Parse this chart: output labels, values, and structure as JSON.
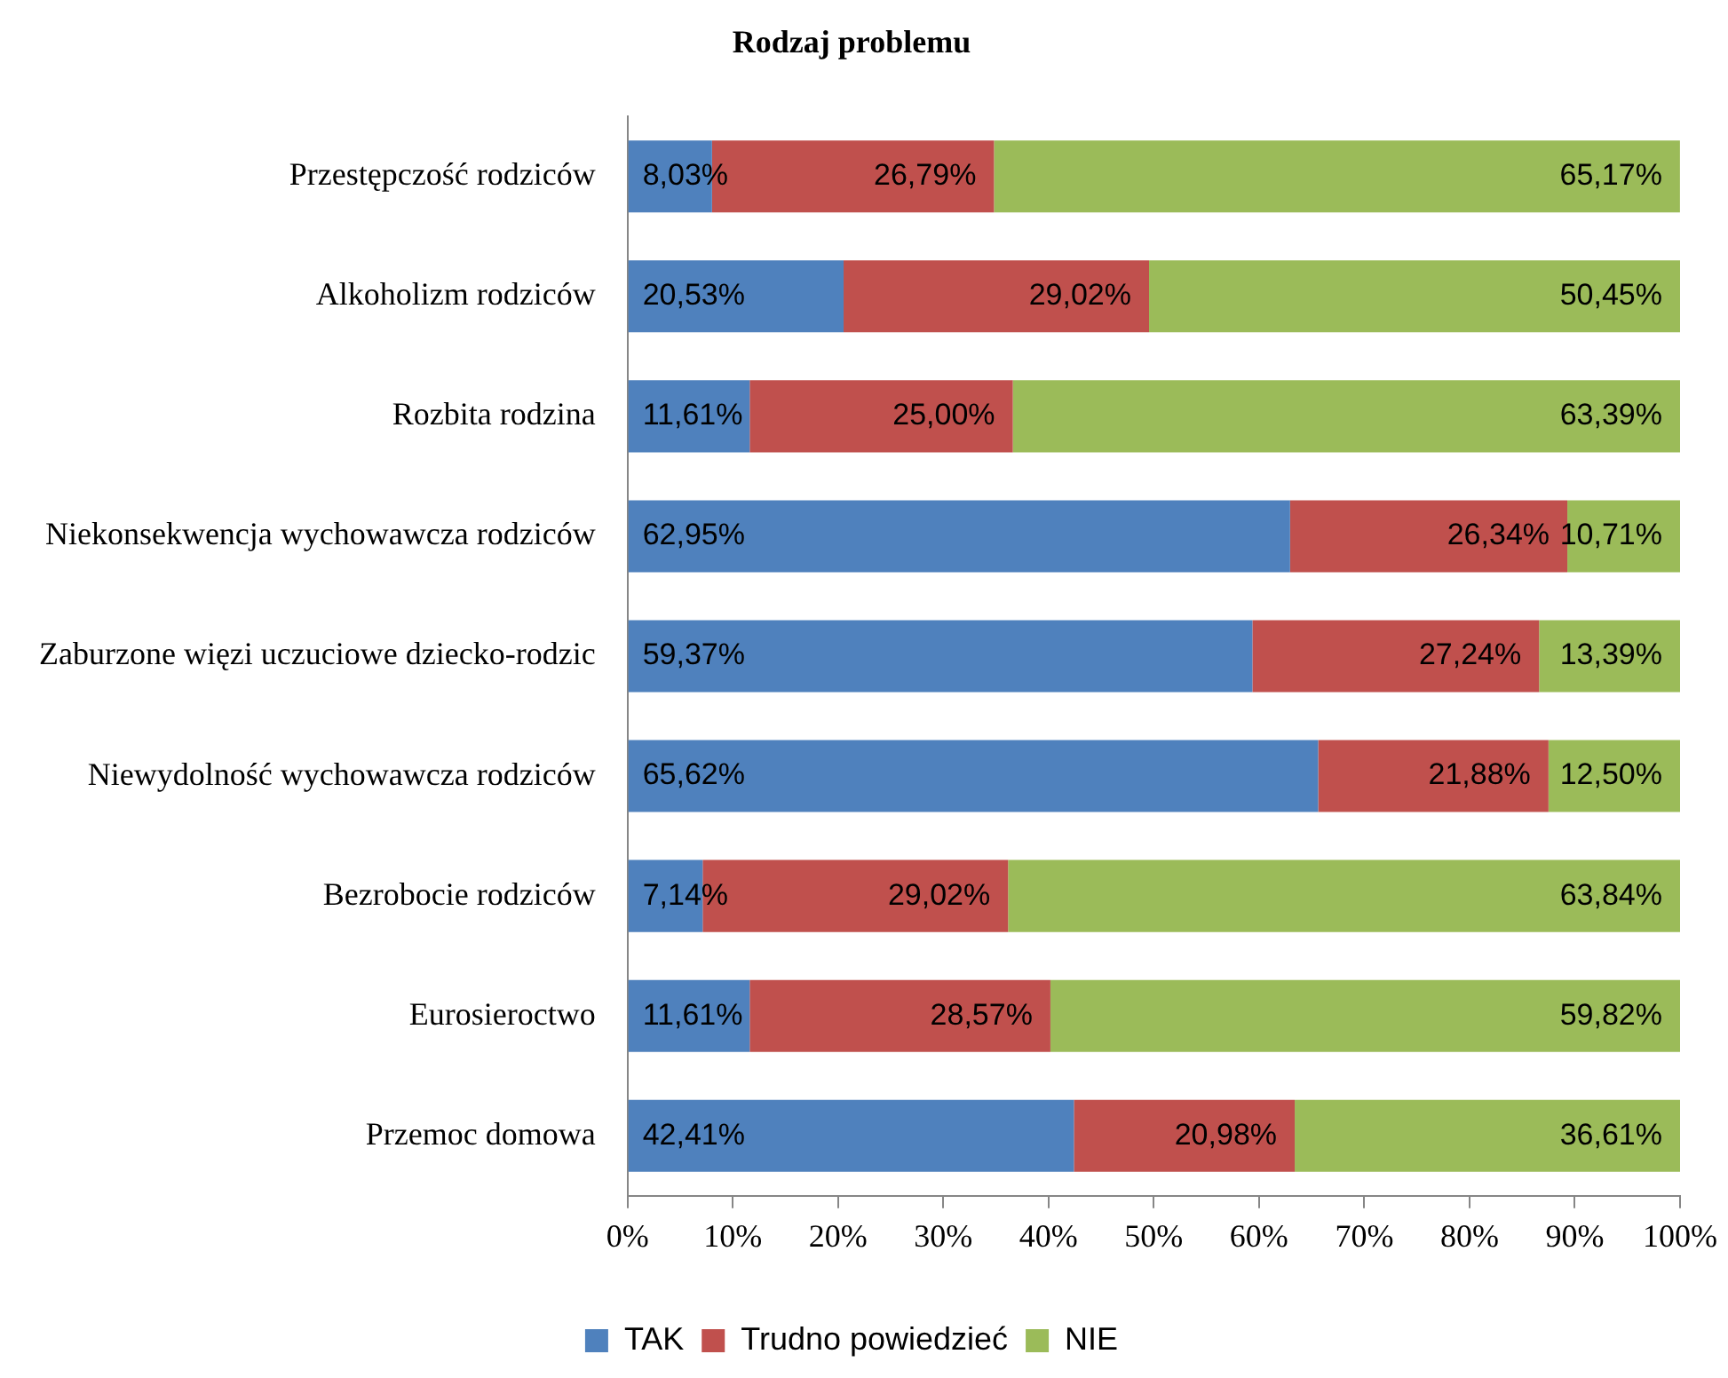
{
  "chart_data": {
    "type": "bar",
    "orientation": "horizontal",
    "stacked": true,
    "title": "Rodzaj problemu",
    "categories": [
      "Przestępczość rodziców",
      "Alkoholizm rodziców",
      "Rozbita rodzina",
      "Niekonsekwencja wychowawcza rodziców",
      "Zaburzone więzi uczuciowe dziecko-rodzic",
      "Niewydolność wychowawcza rodziców",
      "Bezrobocie rodziców",
      "Eurosieroctwo",
      "Przemoc domowa"
    ],
    "series": [
      {
        "name": "TAK",
        "color": "#4f81bd",
        "values": [
          8.03,
          20.53,
          11.61,
          62.95,
          59.37,
          65.62,
          7.14,
          11.61,
          42.41
        ],
        "value_labels": [
          "8,03%",
          "20,53%",
          "11,61%",
          "62,95%",
          "59,37%",
          "65,62%",
          "7,14%",
          "11,61%",
          "42,41%"
        ]
      },
      {
        "name": "Trudno powiedzieć",
        "color": "#c0504d",
        "values": [
          26.79,
          29.02,
          25.0,
          26.34,
          27.24,
          21.88,
          29.02,
          28.57,
          20.98
        ],
        "value_labels": [
          "26,79%",
          "29,02%",
          "25,00%",
          "26,34%",
          "27,24%",
          "21,88%",
          "29,02%",
          "28,57%",
          "20,98%"
        ]
      },
      {
        "name": "NIE",
        "color": "#9bbb59",
        "values": [
          65.17,
          50.45,
          63.39,
          10.71,
          13.39,
          12.5,
          63.84,
          59.82,
          36.61
        ],
        "value_labels": [
          "65,17%",
          "50,45%",
          "63,39%",
          "10,71%",
          "13,39%",
          "12,50%",
          "63,84%",
          "59,82%",
          "36,61%"
        ]
      }
    ],
    "xlim": [
      0,
      100
    ],
    "xticks": [
      {
        "value": 0,
        "label": "0%"
      },
      {
        "value": 10,
        "label": "10%"
      },
      {
        "value": 20,
        "label": "20%"
      },
      {
        "value": 30,
        "label": "30%"
      },
      {
        "value": 40,
        "label": "40%"
      },
      {
        "value": 50,
        "label": "50%"
      },
      {
        "value": 60,
        "label": "60%"
      },
      {
        "value": 70,
        "label": "70%"
      },
      {
        "value": 80,
        "label": "80%"
      },
      {
        "value": 90,
        "label": "90%"
      },
      {
        "value": 100,
        "label": "100%"
      }
    ],
    "legend": "bottom"
  }
}
